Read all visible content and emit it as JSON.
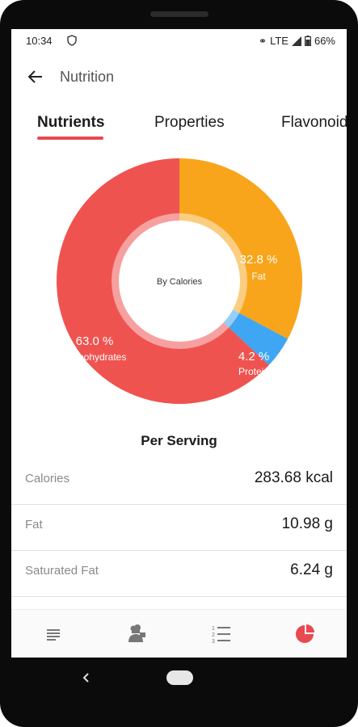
{
  "status_bar": {
    "time": "10:34",
    "network": "LTE",
    "battery": "66%"
  },
  "app_bar": {
    "title": "Nutrition"
  },
  "tabs": [
    "Nutrients",
    "Properties",
    "Flavonoids"
  ],
  "chart_data": {
    "type": "pie",
    "center_label": "By Calories",
    "slices": [
      {
        "name": "Fat",
        "percent_label": "32.8 %",
        "value": 32.8,
        "color": "#f8a51b"
      },
      {
        "name": "Protein",
        "percent_label": "4.2 %",
        "value": 4.2,
        "color": "#3ea6f2"
      },
      {
        "name": "Carbohydrates",
        "percent_label": "63.0 %",
        "value": 63.0,
        "color": "#ef5350"
      }
    ]
  },
  "section_title": "Per Serving",
  "nutrients": [
    {
      "label": "Calories",
      "value": "283.68 kcal"
    },
    {
      "label": "Fat",
      "value": "10.98 g"
    },
    {
      "label": "Saturated Fat",
      "value": "6.24 g"
    }
  ],
  "bottom_nav": {
    "items": [
      "list-icon",
      "chef-icon",
      "numbered-list-icon",
      "pie-chart-icon"
    ],
    "active_index": 3
  },
  "colors": {
    "accent": "#e84a4f",
    "fat": "#f8a51b",
    "protein": "#3ea6f2",
    "carbs": "#ef5350"
  }
}
